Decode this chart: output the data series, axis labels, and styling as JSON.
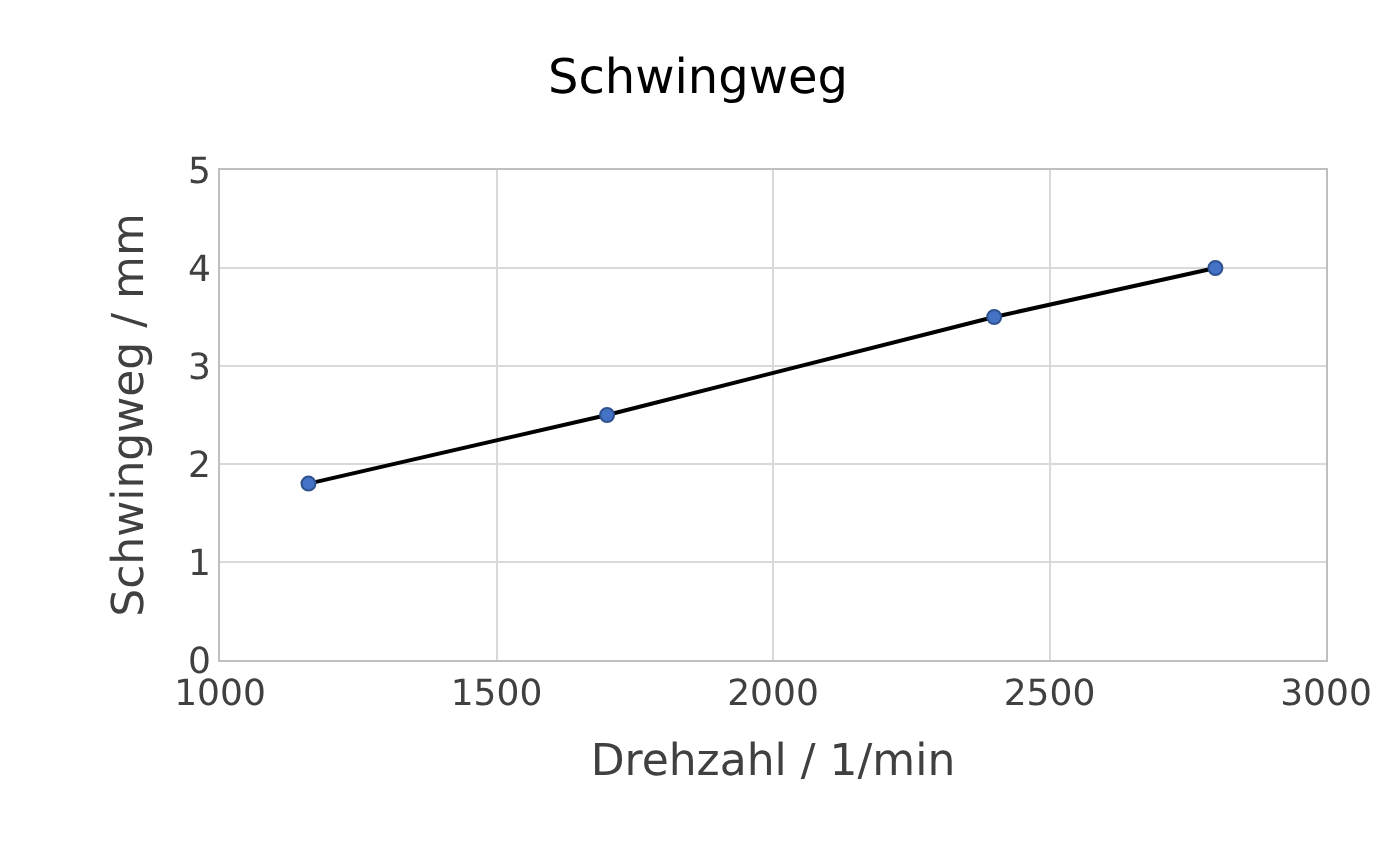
{
  "chart_data": {
    "type": "line",
    "title": "Schwingweg",
    "xlabel": "Drehzahl / 1/min",
    "ylabel": "Schwingweg / mm",
    "x": [
      1160,
      1700,
      2400,
      2800
    ],
    "series": [
      {
        "color": "#000000",
        "values": [
          1.8,
          2.5,
          3.5,
          4.0
        ]
      }
    ],
    "xlim": [
      1000,
      3000
    ],
    "xticks": [
      1000,
      1500,
      2000,
      2500,
      3000
    ],
    "ylim": [
      0,
      5
    ],
    "yticks": [
      0,
      1,
      2,
      3,
      4,
      5
    ],
    "grid": true,
    "legend": false,
    "marker": "circle",
    "line_style": "solid"
  }
}
